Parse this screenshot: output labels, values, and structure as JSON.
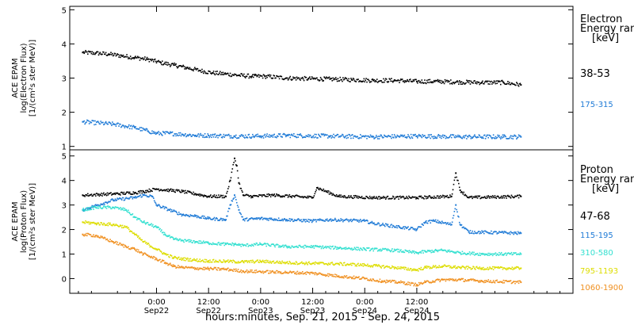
{
  "chart_data": [
    {
      "type": "scatter",
      "ylabel_lines": [
        "ACE EPAM",
        "log(Electron Flux)",
        "[1/(cm²s ster MeV)]"
      ],
      "legend_title": [
        "Electron",
        "Energy range",
        "[keV]"
      ],
      "ylim": [
        0.9,
        5.1
      ],
      "yticks": [
        "1",
        "2",
        "3",
        "4",
        "5"
      ],
      "ytick_values": [
        1,
        2,
        3,
        4,
        5
      ],
      "series": [
        {
          "name": "38-53",
          "color": "#000000",
          "x": [
            -17,
            -14,
            -11,
            -8,
            -5,
            -2,
            1,
            4,
            7,
            10,
            13,
            16,
            19,
            22,
            25,
            30,
            35,
            40,
            45,
            50,
            55,
            60,
            65,
            70,
            75,
            80,
            84
          ],
          "y": [
            3.75,
            3.73,
            3.7,
            3.65,
            3.6,
            3.55,
            3.45,
            3.38,
            3.3,
            3.22,
            3.15,
            3.12,
            3.08,
            3.05,
            3.05,
            3.0,
            2.98,
            2.97,
            2.95,
            2.93,
            2.93,
            2.9,
            2.9,
            2.88,
            2.87,
            2.87,
            2.8
          ]
        },
        {
          "name": "175-315",
          "color": "#1e7ad6",
          "x": [
            -17,
            -10,
            -5,
            -2,
            0,
            3,
            6,
            9,
            12,
            18,
            24,
            30,
            40,
            50,
            60,
            70,
            80,
            84
          ],
          "y": [
            1.72,
            1.65,
            1.55,
            1.45,
            1.38,
            1.38,
            1.35,
            1.32,
            1.32,
            1.3,
            1.3,
            1.32,
            1.3,
            1.28,
            1.3,
            1.28,
            1.28,
            1.28
          ]
        }
      ]
    },
    {
      "type": "scatter",
      "ylabel_lines": [
        "ACE EPAM",
        "log(Proton Flux)",
        "[1/(cm²s ster MeV)]"
      ],
      "legend_title": [
        "Proton",
        "Energy range",
        "[keV]"
      ],
      "ylim": [
        -0.6,
        5.25
      ],
      "yticks": [
        "0",
        "1",
        "2",
        "3",
        "4",
        "5"
      ],
      "ytick_values": [
        0,
        1,
        2,
        3,
        4,
        5
      ],
      "series": [
        {
          "name": "47-68",
          "color": "#000000",
          "x": [
            -17,
            -10,
            -5,
            -3,
            0,
            3,
            6,
            9,
            12,
            16,
            17,
            18,
            18.5,
            19,
            20,
            22,
            27,
            36,
            37,
            42,
            50,
            60,
            68,
            69,
            70,
            72,
            84
          ],
          "y": [
            3.4,
            3.45,
            3.5,
            3.55,
            3.65,
            3.6,
            3.55,
            3.45,
            3.35,
            3.35,
            4.0,
            4.9,
            4.6,
            3.9,
            3.4,
            3.35,
            3.4,
            3.3,
            3.7,
            3.35,
            3.3,
            3.3,
            3.35,
            4.3,
            3.6,
            3.3,
            3.35
          ]
        },
        {
          "name": "115-195",
          "color": "#1e7ad6",
          "x": [
            -17,
            -10,
            -5,
            -3,
            -1,
            0,
            3,
            6,
            9,
            12,
            16,
            17,
            18,
            19,
            20,
            24,
            30,
            36,
            40,
            48,
            50,
            56,
            60,
            62,
            64,
            68,
            69,
            70,
            72,
            84
          ],
          "y": [
            2.8,
            3.2,
            3.3,
            3.4,
            3.35,
            3.0,
            2.8,
            2.6,
            2.55,
            2.45,
            2.4,
            3.0,
            3.4,
            2.8,
            2.4,
            2.45,
            2.4,
            2.35,
            2.4,
            2.35,
            2.25,
            2.1,
            2.0,
            2.3,
            2.35,
            2.2,
            3.0,
            2.2,
            1.9,
            1.85
          ]
        },
        {
          "name": "310-580",
          "color": "#33e0d0",
          "x": [
            -17,
            -14,
            -10,
            -7,
            -5,
            -3,
            0,
            2,
            4,
            6,
            9,
            12,
            16,
            18,
            20,
            24,
            30,
            36,
            42,
            48,
            55,
            60,
            62,
            66,
            70,
            75,
            84
          ],
          "y": [
            2.8,
            2.9,
            2.9,
            2.8,
            2.5,
            2.3,
            2.1,
            1.8,
            1.6,
            1.55,
            1.5,
            1.45,
            1.4,
            1.4,
            1.35,
            1.4,
            1.3,
            1.3,
            1.25,
            1.2,
            1.15,
            1.05,
            1.1,
            1.15,
            1.05,
            1.0,
            1.0
          ]
        },
        {
          "name": "795-1193",
          "color": "#dddd00",
          "x": [
            -17,
            -14,
            -10,
            -7,
            -5,
            -3,
            0,
            2,
            4,
            6,
            9,
            12,
            16,
            20,
            24,
            30,
            36,
            42,
            48,
            55,
            60,
            62,
            66,
            70,
            75,
            84
          ],
          "y": [
            2.3,
            2.25,
            2.2,
            2.1,
            1.8,
            1.5,
            1.2,
            1.0,
            0.85,
            0.8,
            0.75,
            0.72,
            0.7,
            0.68,
            0.7,
            0.65,
            0.62,
            0.6,
            0.55,
            0.45,
            0.35,
            0.45,
            0.5,
            0.45,
            0.42,
            0.42
          ]
        },
        {
          "name": "1060-1900",
          "color": "#f09020",
          "x": [
            -17,
            -14,
            -10,
            -7,
            -5,
            -3,
            0,
            2,
            4,
            6,
            9,
            12,
            16,
            20,
            24,
            30,
            36,
            42,
            48,
            52,
            56,
            60,
            62,
            66,
            70,
            75,
            84
          ],
          "y": [
            1.8,
            1.75,
            1.5,
            1.3,
            1.2,
            1.0,
            0.8,
            0.65,
            0.5,
            0.45,
            0.42,
            0.4,
            0.38,
            0.3,
            0.28,
            0.25,
            0.22,
            0.1,
            0.0,
            -0.1,
            -0.15,
            -0.25,
            -0.15,
            -0.05,
            -0.05,
            -0.1,
            -0.15
          ]
        }
      ]
    }
  ],
  "x_axis": {
    "range_hours": [
      -20,
      96
    ],
    "ticks": [
      {
        "h": 0,
        "time": "0:00",
        "date": "Sep22"
      },
      {
        "h": 12,
        "time": "12:00",
        "date": "Sep22"
      },
      {
        "h": 24,
        "time": "0:00",
        "date": "Sep23"
      },
      {
        "h": 36,
        "time": "12:00",
        "date": "Sep23"
      },
      {
        "h": 48,
        "time": "0:00",
        "date": "Sep24"
      },
      {
        "h": 60,
        "time": "12:00",
        "date": "Sep24"
      }
    ],
    "label": "hours:minutes, Sep. 21, 2015 - Sep. 24, 2015"
  }
}
